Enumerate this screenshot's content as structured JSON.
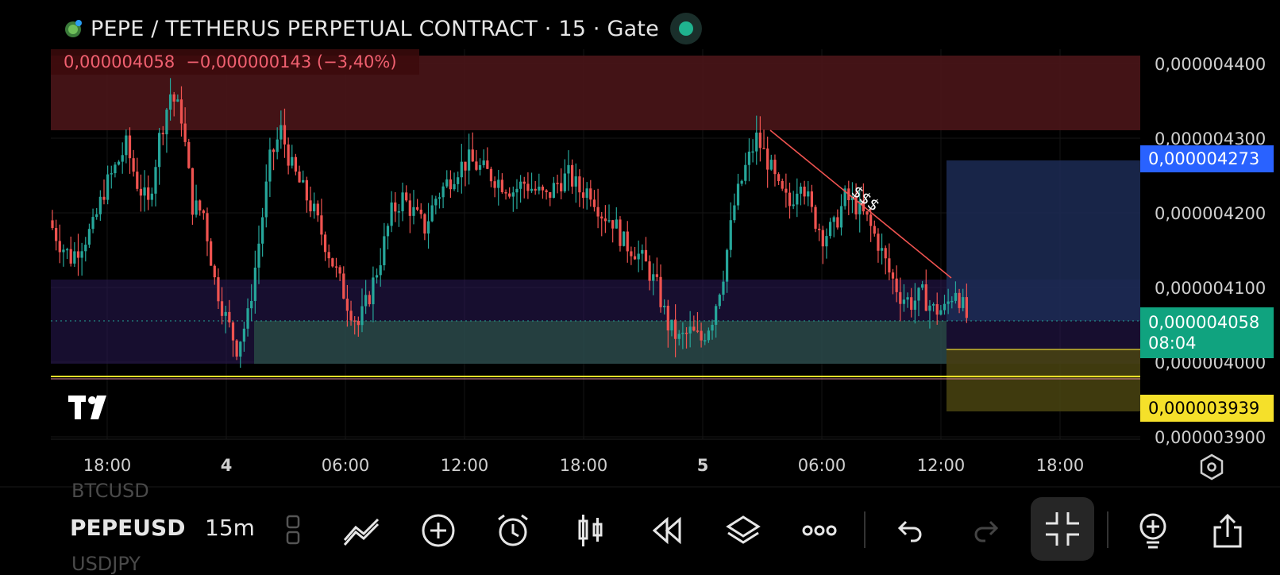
{
  "header": {
    "title": "PEPE / TETHERUS PERPETUAL CONTRACT · 15 · Gate",
    "coin_icon": "pepe-coin-icon",
    "status_color": "#1fb38f"
  },
  "quote": {
    "last": "0,000004058",
    "change": "−0,000000143",
    "change_pct": "(−3,40%)"
  },
  "price_axis": {
    "ticks": [
      "0,000004400",
      "0,000004300",
      "0,000004200",
      "0,000004100",
      "0,000004000",
      "0,000003900"
    ]
  },
  "price_tags": {
    "blue": "0,000004273",
    "current": "0,000004058",
    "countdown": "08:04",
    "yellow": "0,000003939"
  },
  "time_axis": {
    "ticks": [
      "18:00",
      "4",
      "06:00",
      "12:00",
      "18:00",
      "5",
      "06:00",
      "12:00",
      "18:00"
    ]
  },
  "annotation": {
    "text": "$$$"
  },
  "toolbar": {
    "symbol": "PEPEUSD",
    "interval": "15m",
    "ghost_above": "BTCUSD",
    "ghost_below": "USDJPY",
    "icons": [
      "layout-icon",
      "trendline-icon",
      "add-icon",
      "alarm-icon",
      "candles-icon",
      "replay-icon",
      "layers-icon",
      "more-icon",
      "undo-icon",
      "redo-icon",
      "collapse-icon",
      "ideas-icon",
      "share-icon"
    ]
  },
  "colors": {
    "up": "#26a69a",
    "down": "#ef5350",
    "accent_blue": "#2962ff",
    "accent_yellow": "#f5e02a"
  },
  "chart_data": {
    "type": "candlestick",
    "ylim": [
      3.9e-06,
      4.4e-06
    ],
    "close_series": [
      4.19,
      4.16,
      4.14,
      4.16,
      4.18,
      4.23,
      4.26,
      4.29,
      4.24,
      4.21,
      4.3,
      4.36,
      4.33,
      4.21,
      4.2,
      4.11,
      4.06,
      4.02,
      4.06,
      4.16,
      4.27,
      4.31,
      4.26,
      4.23,
      4.2,
      4.16,
      4.12,
      4.08,
      4.05,
      4.09,
      4.14,
      4.2,
      4.22,
      4.2,
      4.18,
      4.22,
      4.24,
      4.26,
      4.27,
      4.26,
      4.25,
      4.24,
      4.23,
      4.24,
      4.23,
      4.22,
      4.24,
      4.25,
      4.23,
      4.23,
      4.2,
      4.19,
      4.16,
      4.15,
      4.13,
      4.1,
      4.05,
      4.03,
      4.04,
      4.03,
      4.06,
      4.12,
      4.21,
      4.26,
      4.3,
      4.27,
      4.23,
      4.21,
      4.25,
      4.2,
      4.17,
      4.18,
      4.22,
      4.21,
      4.19,
      4.16,
      4.12,
      4.09,
      4.08,
      4.09,
      4.07,
      4.07,
      4.1,
      4.06
    ]
  }
}
